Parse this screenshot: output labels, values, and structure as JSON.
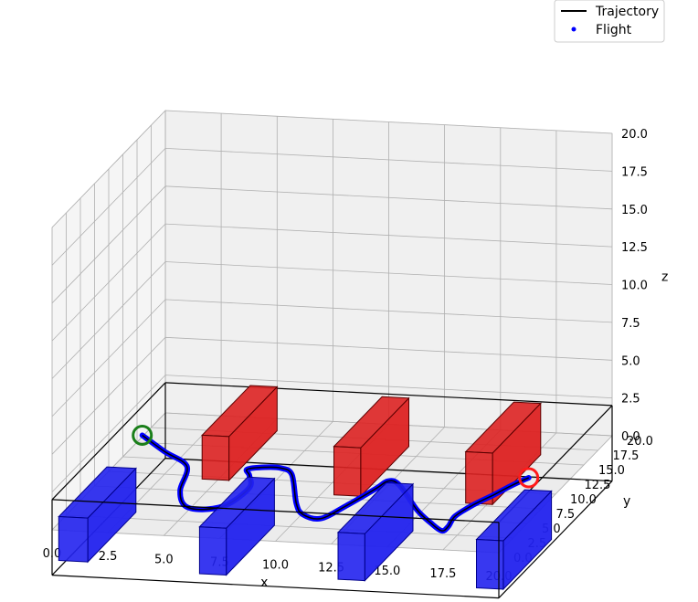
{
  "chart_data": {
    "type": "line",
    "title": "",
    "xlabel": "x",
    "ylabel": "y",
    "zlabel": "z",
    "xlim": [
      0,
      20
    ],
    "ylim": [
      0,
      20
    ],
    "zlim": [
      0,
      20
    ],
    "x_ticks": [
      "0.0",
      "2.5",
      "5.0",
      "7.5",
      "10.0",
      "12.5",
      "15.0",
      "17.5",
      "20.0"
    ],
    "y_ticks": [
      "0.0",
      "2.5",
      "5.0",
      "7.5",
      "10.0",
      "12.5",
      "15.0",
      "17.5",
      "20.0"
    ],
    "z_ticks": [
      "0.0",
      "2.5",
      "5.0",
      "7.5",
      "10.0",
      "12.5",
      "15.0",
      "17.5",
      "20.0"
    ],
    "legend": [
      {
        "label": "Trajectory",
        "marker": "line",
        "color": "#000000"
      },
      {
        "label": "Flight",
        "marker": "dot",
        "color": "#0000ff"
      }
    ],
    "legend_position": "top-right",
    "start_marker": {
      "x": 1.5,
      "y": 10,
      "z": 2.5,
      "color": "#1a7f1a"
    },
    "goal_marker": {
      "x": 18.8,
      "y": 10,
      "z": 1.0,
      "color": "#ff1a1a"
    },
    "trajectory": {
      "x": [
        1.5,
        2.5,
        3.5,
        3.2,
        3.4,
        4.2,
        5.3,
        6.3,
        6.3,
        6.2,
        7.0,
        7.7,
        8.2,
        8.4,
        8.7,
        9.5,
        10.6,
        12.0,
        12.5,
        13.0,
        13.8,
        14.4,
        14.9,
        15.2,
        15.5,
        16.3,
        17.3,
        18.0,
        18.8
      ],
      "y": [
        10,
        10,
        10,
        10,
        10,
        10,
        10,
        10,
        10,
        10,
        10,
        10,
        10,
        10,
        10,
        10,
        10,
        10,
        10,
        10,
        10,
        10,
        10,
        10,
        10,
        10,
        10,
        10,
        10
      ],
      "z": [
        2.5,
        1.5,
        0.6,
        -1.0,
        -2.0,
        -2.2,
        -1.8,
        -0.6,
        0.2,
        0.6,
        0.8,
        0.8,
        0.4,
        -1.5,
        -2.2,
        -2.4,
        -1.5,
        -0.2,
        0.3,
        0.1,
        -1.5,
        -2.3,
        -2.8,
        -2.5,
        -1.8,
        -1.0,
        -0.2,
        0.4,
        1.0
      ]
    },
    "obstacles": [
      {
        "color": "blue",
        "x": [
          0.3,
          1.6
        ],
        "y": [
          0,
          8.5
        ],
        "z": [
          -2.0,
          0.9
        ]
      },
      {
        "color": "blue",
        "x": [
          6.6,
          7.8
        ],
        "y": [
          0,
          8.5
        ],
        "z": [
          -2.4,
          0.7
        ]
      },
      {
        "color": "blue",
        "x": [
          12.8,
          14.0
        ],
        "y": [
          0,
          8.5
        ],
        "z": [
          -2.3,
          0.8
        ]
      },
      {
        "color": "blue",
        "x": [
          19.0,
          20.2
        ],
        "y": [
          0,
          8.5
        ],
        "z": [
          -2.4,
          0.8
        ]
      },
      {
        "color": "red",
        "x": [
          3.8,
          5.0
        ],
        "y": [
          11.5,
          20
        ],
        "z": [
          -0.8,
          2.1
        ]
      },
      {
        "color": "red",
        "x": [
          9.7,
          10.9
        ],
        "y": [
          11.5,
          20
        ],
        "z": [
          -1.4,
          1.8
        ]
      },
      {
        "color": "red",
        "x": [
          15.6,
          16.8
        ],
        "y": [
          11.5,
          20
        ],
        "z": [
          -1.5,
          1.9
        ]
      }
    ],
    "colors": {
      "blue_face": "#2222ee",
      "blue_edge": "#00008b",
      "red_face": "#dd2222",
      "red_edge": "#5a0000",
      "trajectory": "#000000",
      "flight": "#0000ff"
    }
  }
}
